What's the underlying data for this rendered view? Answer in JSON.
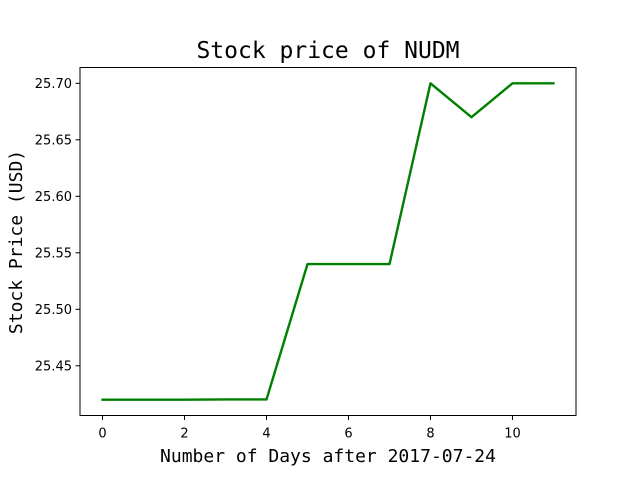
{
  "chart_data": {
    "type": "line",
    "title": "Stock price of NUDM",
    "xlabel": "Number of Days after 2017-07-24",
    "ylabel": "Stock Price (USD)",
    "x": [
      0,
      1,
      2,
      3,
      4,
      5,
      6,
      7,
      8,
      9,
      10,
      11
    ],
    "series": [
      {
        "values": [
          25.42,
          25.42,
          25.42,
          25.4202,
          25.4202,
          25.54,
          25.54,
          25.54,
          25.7,
          25.67,
          25.7,
          25.7
        ],
        "color": "#008000"
      }
    ],
    "xlim": [
      -0.55,
      11.55
    ],
    "ylim": [
      25.406,
      25.714
    ],
    "xticks": [
      0,
      2,
      4,
      6,
      8,
      10
    ],
    "yticks": [
      25.45,
      25.5,
      25.55,
      25.6,
      25.65,
      25.7
    ],
    "ytick_labels": [
      "25.45",
      "25.50",
      "25.55",
      "25.60",
      "25.65",
      "25.70"
    ],
    "grid": false,
    "legend": "none"
  }
}
